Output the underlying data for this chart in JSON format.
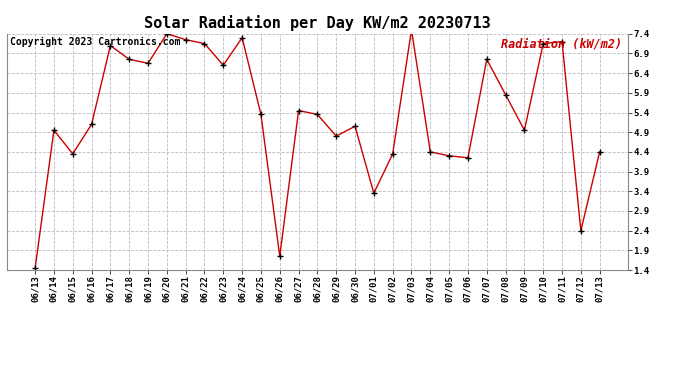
{
  "title": "Solar Radiation per Day KW/m2 20230713",
  "copyright_text": "Copyright 2023 Cartronics.com",
  "legend_label": "Radiation (kW/m2)",
  "dates": [
    "06/13",
    "06/14",
    "06/15",
    "06/16",
    "06/17",
    "06/18",
    "06/19",
    "06/20",
    "06/21",
    "06/22",
    "06/23",
    "06/24",
    "06/25",
    "06/26",
    "06/27",
    "06/28",
    "06/29",
    "06/30",
    "07/01",
    "07/02",
    "07/03",
    "07/04",
    "07/05",
    "07/06",
    "07/07",
    "07/08",
    "07/09",
    "07/10",
    "07/11",
    "07/12",
    "07/13"
  ],
  "values": [
    1.45,
    4.95,
    4.35,
    5.1,
    7.1,
    6.75,
    6.65,
    7.4,
    7.25,
    7.15,
    6.6,
    7.3,
    5.35,
    1.75,
    5.45,
    5.35,
    4.8,
    5.05,
    3.35,
    4.35,
    7.5,
    4.4,
    4.3,
    4.25,
    6.75,
    5.85,
    4.95,
    7.15,
    7.2,
    2.4,
    4.4
  ],
  "line_color": "#cc0000",
  "marker": "+",
  "marker_color": "#000000",
  "marker_size": 5,
  "marker_linewidth": 1.0,
  "line_width": 1.0,
  "ylim": [
    1.4,
    7.4
  ],
  "yticks": [
    1.4,
    1.9,
    2.4,
    2.9,
    3.4,
    3.9,
    4.4,
    4.9,
    5.4,
    5.9,
    6.4,
    6.9,
    7.4
  ],
  "background_color": "#ffffff",
  "grid_color": "#bbbbbb",
  "title_fontsize": 11,
  "copyright_fontsize": 7,
  "legend_fontsize": 8.5,
  "tick_fontsize": 6.5,
  "title_color": "#000000",
  "copyright_color": "#000000",
  "legend_color": "#cc0000",
  "fig_width": 6.9,
  "fig_height": 3.75,
  "dpi": 100
}
